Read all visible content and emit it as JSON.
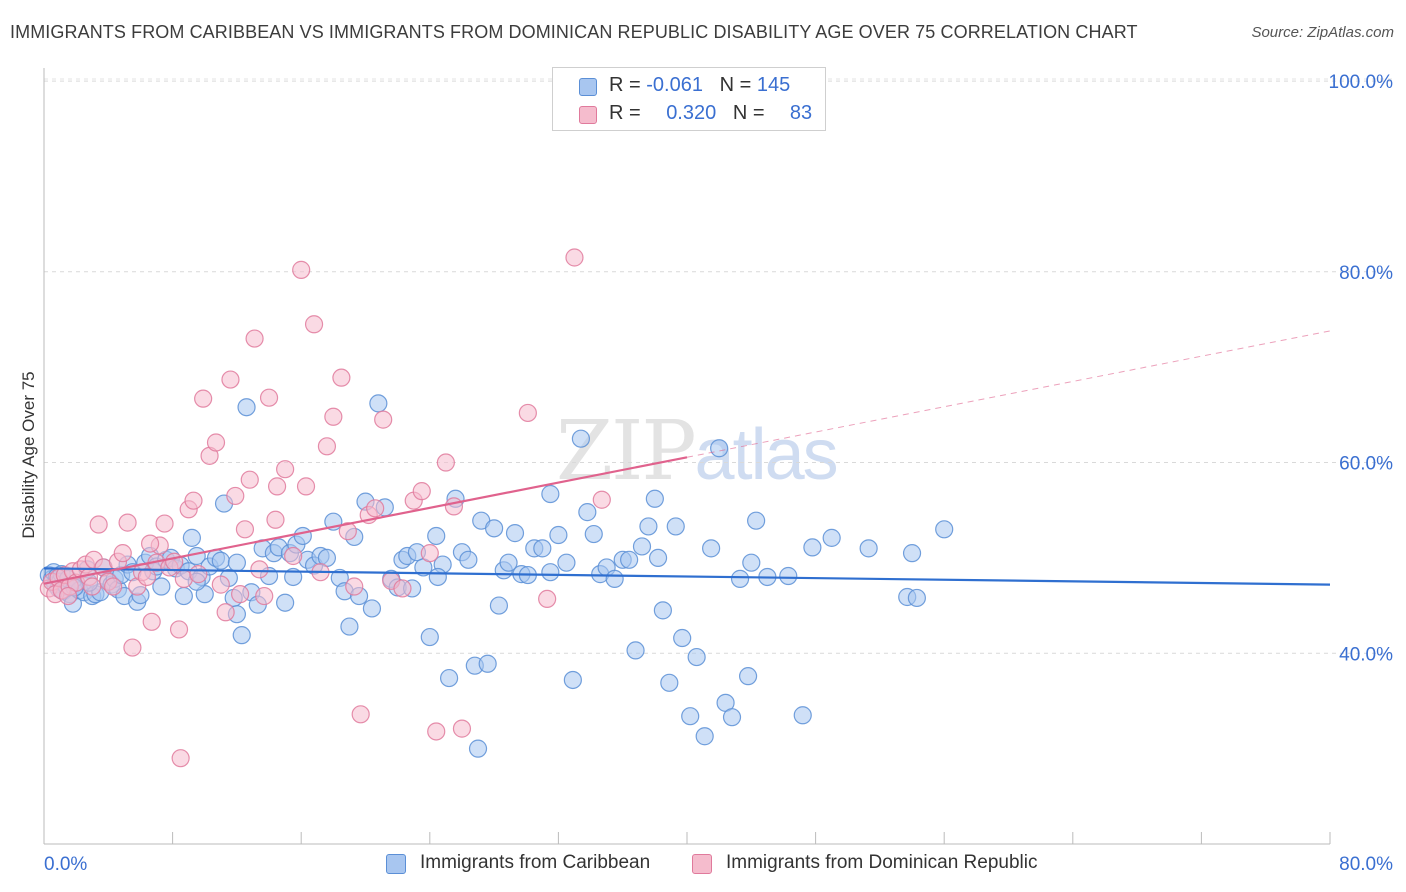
{
  "header": {
    "title": "IMMIGRANTS FROM CARIBBEAN VS IMMIGRANTS FROM DOMINICAN REPUBLIC DISABILITY AGE OVER 75 CORRELATION CHART",
    "source": "Source: ZipAtlas.com"
  },
  "watermark": {
    "zip": "ZIP",
    "atlas": "atlas"
  },
  "legend": {
    "rows": [
      {
        "r_label": "R = ",
        "r_value": "-0.061",
        "n_label": "N = ",
        "n_value": "145"
      },
      {
        "r_label": "R = ",
        "r_value": "0.320",
        "n_label": "N = ",
        "n_value": "83"
      }
    ]
  },
  "chart_data": {
    "type": "scatter",
    "title": "IMMIGRANTS FROM CARIBBEAN VS IMMIGRANTS FROM DOMINICAN REPUBLIC DISABILITY AGE OVER 75 CORRELATION CHART",
    "xlabel": "",
    "ylabel": "Disability Age Over 75",
    "xlim": [
      0,
      80
    ],
    "ylim": [
      20,
      102
    ],
    "x_tick_labels": [
      "0.0%",
      "80.0%"
    ],
    "y_ticks": [
      40,
      60,
      80,
      100
    ],
    "y_tick_labels": [
      "40.0%",
      "60.0%",
      "80.0%",
      "100.0%"
    ],
    "grid": true,
    "legend_position": "top-center",
    "colors": {
      "caribbean_fill": "#a8c6f0",
      "caribbean_stroke": "#5b8fd6",
      "caribbean_line": "#2f6fd0",
      "dominican_fill": "#f5bccd",
      "dominican_stroke": "#e07a9c",
      "dominican_line": "#e0628d",
      "tick_label": "#3a6fd1"
    },
    "series": [
      {
        "name": "Immigrants from Caribbean",
        "trend": {
          "x0": 0,
          "y0": 48.9,
          "x1": 80,
          "y1": 47.2,
          "dashed_from": null
        },
        "points": [
          [
            0.3,
            48.2
          ],
          [
            0.5,
            47.8
          ],
          [
            0.6,
            48.5
          ],
          [
            0.7,
            47.2
          ],
          [
            0.8,
            48.0
          ],
          [
            0.9,
            46.8
          ],
          [
            1.0,
            47.5
          ],
          [
            1.1,
            48.3
          ],
          [
            1.2,
            46.5
          ],
          [
            1.4,
            47.0
          ],
          [
            1.5,
            47.8
          ],
          [
            1.6,
            46.2
          ],
          [
            1.8,
            45.2
          ],
          [
            2.0,
            47.0
          ],
          [
            2.2,
            46.6
          ],
          [
            2.5,
            46.4
          ],
          [
            2.7,
            48.8
          ],
          [
            3.0,
            46.0
          ],
          [
            3.2,
            46.2
          ],
          [
            3.5,
            46.4
          ],
          [
            3.7,
            49.0
          ],
          [
            4.0,
            47.6
          ],
          [
            4.2,
            47.2
          ],
          [
            4.4,
            47.8
          ],
          [
            4.6,
            46.7
          ],
          [
            4.8,
            48.2
          ],
          [
            5.0,
            46.0
          ],
          [
            5.2,
            49.3
          ],
          [
            5.5,
            48.5
          ],
          [
            5.8,
            45.4
          ],
          [
            6.0,
            46.1
          ],
          [
            6.3,
            49.5
          ],
          [
            6.6,
            50.2
          ],
          [
            6.8,
            48.6
          ],
          [
            7.0,
            49.1
          ],
          [
            7.3,
            47.0
          ],
          [
            7.6,
            49.8
          ],
          [
            7.9,
            50.0
          ],
          [
            8.2,
            48.9
          ],
          [
            8.5,
            49.2
          ],
          [
            8.7,
            46.0
          ],
          [
            9.0,
            48.6
          ],
          [
            9.2,
            52.1
          ],
          [
            9.5,
            50.2
          ],
          [
            9.8,
            48.0
          ],
          [
            10.0,
            46.2
          ],
          [
            10.3,
            49.1
          ],
          [
            10.7,
            50.0
          ],
          [
            11.0,
            49.7
          ],
          [
            11.2,
            55.7
          ],
          [
            11.5,
            47.9
          ],
          [
            11.8,
            45.8
          ],
          [
            12.0,
            44.1
          ],
          [
            12.3,
            41.9
          ],
          [
            12.6,
            65.8
          ],
          [
            12.9,
            46.4
          ],
          [
            13.3,
            45.1
          ],
          [
            13.6,
            51.0
          ],
          [
            14.0,
            48.1
          ],
          [
            14.3,
            50.5
          ],
          [
            14.6,
            51.1
          ],
          [
            15.0,
            45.3
          ],
          [
            15.3,
            50.5
          ],
          [
            15.7,
            51.4
          ],
          [
            16.1,
            52.3
          ],
          [
            16.4,
            49.8
          ],
          [
            16.8,
            49.2
          ],
          [
            17.2,
            50.2
          ],
          [
            17.6,
            50.0
          ],
          [
            18.0,
            53.8
          ],
          [
            18.4,
            47.9
          ],
          [
            18.7,
            46.5
          ],
          [
            19.0,
            42.8
          ],
          [
            19.3,
            52.2
          ],
          [
            19.6,
            46.0
          ],
          [
            20.0,
            55.9
          ],
          [
            20.4,
            44.7
          ],
          [
            20.8,
            66.2
          ],
          [
            21.2,
            55.3
          ],
          [
            21.6,
            47.8
          ],
          [
            22.0,
            46.9
          ],
          [
            22.3,
            49.8
          ],
          [
            22.6,
            50.2
          ],
          [
            22.9,
            46.8
          ],
          [
            23.2,
            50.6
          ],
          [
            23.6,
            49.0
          ],
          [
            24.0,
            41.7
          ],
          [
            24.4,
            52.3
          ],
          [
            24.8,
            49.3
          ],
          [
            25.2,
            37.4
          ],
          [
            25.6,
            56.2
          ],
          [
            26.0,
            50.6
          ],
          [
            26.4,
            49.8
          ],
          [
            26.8,
            38.7
          ],
          [
            27.2,
            53.9
          ],
          [
            27.6,
            38.9
          ],
          [
            28.0,
            53.1
          ],
          [
            28.3,
            45.0
          ],
          [
            28.6,
            48.7
          ],
          [
            28.9,
            49.5
          ],
          [
            29.3,
            52.6
          ],
          [
            29.7,
            48.3
          ],
          [
            30.1,
            48.2
          ],
          [
            30.5,
            51.0
          ],
          [
            31.0,
            51.0
          ],
          [
            31.5,
            56.7
          ],
          [
            32.0,
            52.4
          ],
          [
            32.5,
            49.5
          ],
          [
            32.9,
            37.2
          ],
          [
            33.4,
            62.5
          ],
          [
            33.8,
            54.8
          ],
          [
            34.2,
            52.5
          ],
          [
            34.6,
            48.3
          ],
          [
            35.0,
            49.0
          ],
          [
            35.5,
            47.8
          ],
          [
            36.0,
            49.8
          ],
          [
            36.4,
            49.8
          ],
          [
            36.8,
            40.3
          ],
          [
            37.2,
            51.2
          ],
          [
            37.6,
            53.3
          ],
          [
            38.0,
            56.2
          ],
          [
            38.5,
            44.5
          ],
          [
            38.9,
            36.9
          ],
          [
            39.3,
            53.3
          ],
          [
            39.7,
            41.6
          ],
          [
            40.2,
            33.4
          ],
          [
            40.6,
            39.6
          ],
          [
            41.1,
            31.3
          ],
          [
            41.5,
            51.0
          ],
          [
            42.0,
            61.5
          ],
          [
            42.4,
            34.8
          ],
          [
            42.8,
            33.3
          ],
          [
            43.3,
            47.8
          ],
          [
            43.8,
            37.6
          ],
          [
            44.3,
            53.9
          ],
          [
            45.0,
            48.0
          ],
          [
            46.3,
            48.1
          ],
          [
            47.2,
            33.5
          ],
          [
            47.8,
            51.1
          ],
          [
            49.0,
            52.1
          ],
          [
            51.3,
            51.0
          ],
          [
            53.7,
            45.9
          ],
          [
            54.0,
            50.5
          ],
          [
            54.3,
            45.8
          ],
          [
            56.0,
            53.0
          ],
          [
            27.0,
            30.0
          ],
          [
            12.0,
            49.5
          ],
          [
            24.5,
            48.0
          ],
          [
            31.5,
            48.5
          ],
          [
            38.2,
            50.0
          ],
          [
            44.0,
            49.5
          ],
          [
            15.5,
            48.0
          ],
          [
            9.5,
            47.5
          ],
          [
            2.8,
            47.4
          ],
          [
            1.9,
            46.9
          ]
        ]
      },
      {
        "name": "Immigrants from Dominican Republic",
        "trend": {
          "x0": 0,
          "y0": 47.3,
          "x1": 80,
          "y1": 73.8,
          "dashed_from": 40
        },
        "points": [
          [
            0.3,
            46.8
          ],
          [
            0.5,
            47.5
          ],
          [
            0.7,
            46.2
          ],
          [
            0.9,
            47.9
          ],
          [
            1.1,
            46.6
          ],
          [
            1.3,
            48.2
          ],
          [
            1.6,
            47.0
          ],
          [
            1.8,
            48.6
          ],
          [
            2.0,
            47.4
          ],
          [
            2.3,
            48.8
          ],
          [
            2.6,
            49.3
          ],
          [
            2.8,
            48.0
          ],
          [
            3.1,
            49.8
          ],
          [
            3.4,
            53.5
          ],
          [
            3.7,
            49.0
          ],
          [
            4.0,
            47.5
          ],
          [
            4.3,
            47.0
          ],
          [
            4.6,
            49.6
          ],
          [
            4.9,
            50.5
          ],
          [
            5.2,
            53.7
          ],
          [
            5.5,
            40.6
          ],
          [
            5.8,
            47.0
          ],
          [
            6.1,
            48.5
          ],
          [
            6.4,
            48.0
          ],
          [
            6.7,
            43.3
          ],
          [
            7.0,
            49.5
          ],
          [
            7.2,
            51.3
          ],
          [
            7.5,
            53.6
          ],
          [
            7.8,
            49.0
          ],
          [
            8.1,
            49.6
          ],
          [
            8.4,
            42.5
          ],
          [
            8.7,
            47.8
          ],
          [
            9.0,
            55.1
          ],
          [
            9.3,
            56.0
          ],
          [
            9.6,
            48.3
          ],
          [
            9.9,
            66.7
          ],
          [
            10.3,
            60.7
          ],
          [
            10.7,
            62.1
          ],
          [
            11.0,
            47.2
          ],
          [
            11.3,
            44.3
          ],
          [
            11.6,
            68.7
          ],
          [
            11.9,
            56.5
          ],
          [
            12.2,
            46.2
          ],
          [
            12.5,
            53.0
          ],
          [
            12.8,
            58.2
          ],
          [
            13.1,
            73.0
          ],
          [
            13.4,
            48.8
          ],
          [
            13.7,
            46.0
          ],
          [
            14.0,
            66.8
          ],
          [
            14.5,
            57.5
          ],
          [
            15.0,
            59.3
          ],
          [
            15.5,
            50.2
          ],
          [
            16.0,
            80.2
          ],
          [
            16.3,
            57.5
          ],
          [
            16.8,
            74.5
          ],
          [
            17.2,
            48.5
          ],
          [
            17.6,
            61.7
          ],
          [
            18.0,
            64.8
          ],
          [
            18.5,
            68.9
          ],
          [
            18.9,
            52.8
          ],
          [
            19.3,
            47.0
          ],
          [
            19.7,
            33.6
          ],
          [
            20.2,
            54.5
          ],
          [
            20.6,
            55.2
          ],
          [
            21.1,
            64.5
          ],
          [
            21.6,
            47.6
          ],
          [
            22.3,
            46.8
          ],
          [
            23.0,
            56.0
          ],
          [
            23.5,
            57.0
          ],
          [
            24.0,
            50.5
          ],
          [
            24.4,
            31.8
          ],
          [
            25.0,
            60.0
          ],
          [
            25.5,
            55.4
          ],
          [
            26.0,
            32.1
          ],
          [
            30.1,
            65.2
          ],
          [
            31.3,
            45.7
          ],
          [
            33.0,
            81.5
          ],
          [
            34.7,
            56.1
          ],
          [
            8.5,
            29.0
          ],
          [
            6.6,
            51.5
          ],
          [
            14.4,
            54.0
          ],
          [
            3.0,
            47.0
          ],
          [
            1.5,
            46.0
          ]
        ]
      }
    ]
  },
  "bottom_legend": {
    "items": [
      {
        "label": "Immigrants from Caribbean"
      },
      {
        "label": "Immigrants from Dominican Republic"
      }
    ]
  }
}
